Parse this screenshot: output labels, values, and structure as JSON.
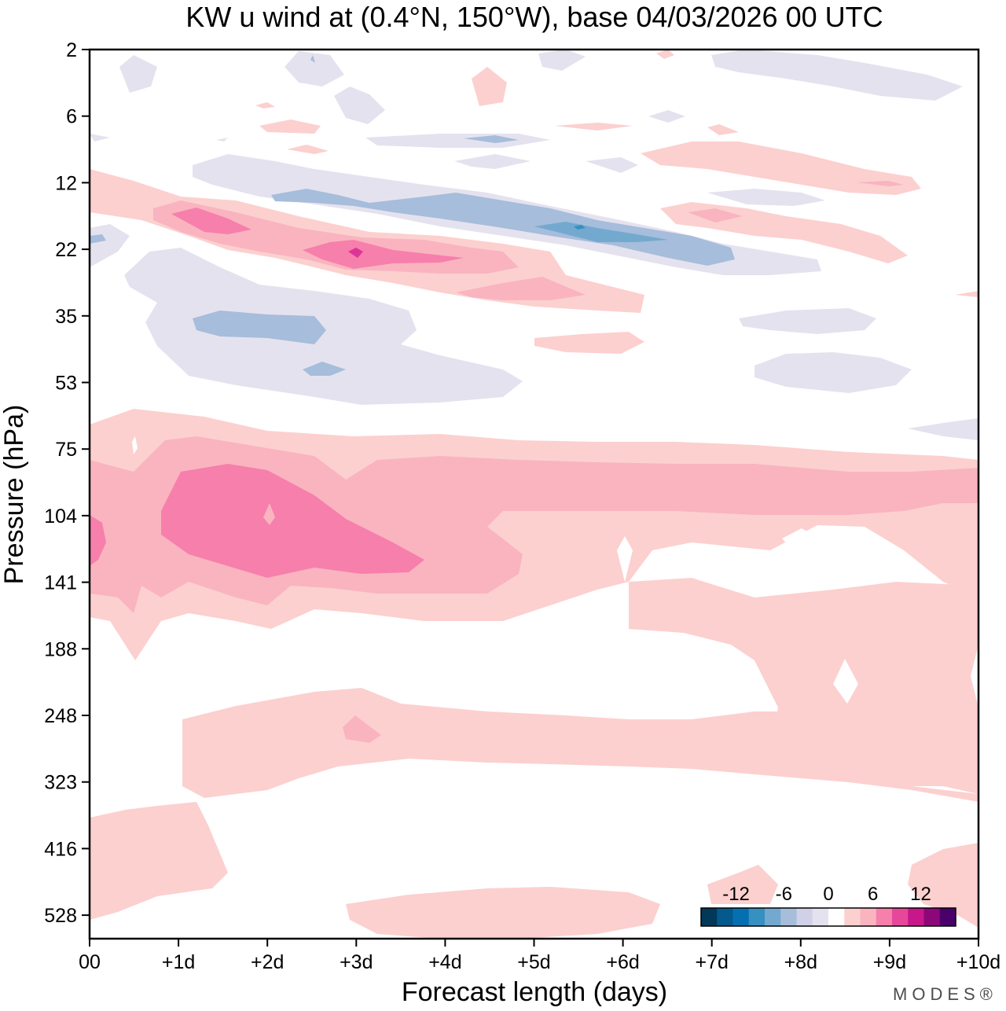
{
  "chart_data": {
    "type": "heatmap",
    "title": "KW u wind at (0.4°N, 150°W),  base 04/03/2026  00 UTC",
    "xlabel": "Forecast length (days)",
    "ylabel": "Pressure (hPa)",
    "x_ticks": [
      "00",
      "+1d",
      "+2d",
      "+3d",
      "+4d",
      "+5d",
      "+6d",
      "+7d",
      "+8d",
      "+9d",
      "+10d"
    ],
    "y_ticks": [
      "2",
      "6",
      "12",
      "22",
      "35",
      "53",
      "75",
      "104",
      "141",
      "188",
      "248",
      "323",
      "416",
      "528"
    ],
    "xlim": [
      0,
      10
    ],
    "y_scale": "log-pressure",
    "colorbar": {
      "ticks": [
        "-12",
        "-6",
        "0",
        "6",
        "12"
      ],
      "levels": [
        -16,
        -14,
        -12,
        -10,
        -8,
        -6,
        -4,
        -2,
        2,
        4,
        6,
        8,
        10,
        12,
        14,
        16
      ],
      "colors": [
        "#023858",
        "#045a8d",
        "#0570b0",
        "#3690c0",
        "#74a9cf",
        "#a6bddb",
        "#d0d1e6",
        "#e5e2ef",
        "#ffffff",
        "#fcd0cf",
        "#f9b4c0",
        "#f77fab",
        "#e7479b",
        "#c9178b",
        "#8c0778",
        "#49006a"
      ]
    },
    "regions": [
      {
        "level": "+2 to +4",
        "day_range": [
          0,
          10
        ],
        "pressure_range": [
          60,
          175
        ],
        "desc": "broad positive band"
      },
      {
        "level": "+4 to +6",
        "day_range": [
          0,
          10
        ],
        "pressure_range": [
          80,
          150
        ],
        "desc": "core of lower jet"
      },
      {
        "level": "+6 to +8",
        "day_range": [
          0.8,
          3.8
        ],
        "pressure_range": [
          90,
          135
        ],
        "desc": "maximum near day 1.5"
      },
      {
        "level": "+2 to +4",
        "day_range": [
          1,
          10
        ],
        "pressure_range": [
          230,
          320
        ],
        "desc": "mid-level positive band"
      },
      {
        "level": "+2 to +4",
        "day_range": [
          3,
          6.5
        ],
        "pressure_range": [
          490,
          600
        ],
        "desc": "low-level positive patch"
      },
      {
        "level": "-2 to -4",
        "day_range": [
          0.5,
          5
        ],
        "pressure_range": [
          24,
          60
        ],
        "desc": "negative region"
      },
      {
        "level": "-4 to -6",
        "day_range": [
          4,
          7.2
        ],
        "pressure_range": [
          15,
          24
        ],
        "desc": "negative maximum near day 5.5"
      },
      {
        "level": "+6 to +10",
        "day_range": [
          0.8,
          4
        ],
        "pressure_range": [
          16,
          26
        ],
        "desc": "upper positive maximum near day 3"
      }
    ]
  },
  "branding": "MODES®"
}
